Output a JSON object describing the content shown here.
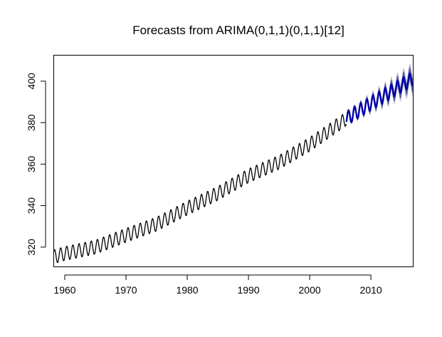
{
  "chart_data": {
    "type": "line",
    "title": "Forecasts from ARIMA(0,1,1)(0,1,1)[12]",
    "xlabel": "",
    "ylabel": "",
    "xlim": [
      1958.2,
      2016.9
    ],
    "ylim": [
      310.5,
      412.5
    ],
    "x_ticks": [
      1960,
      1970,
      1980,
      1990,
      2000,
      2010
    ],
    "y_ticks": [
      320,
      340,
      360,
      380,
      400
    ],
    "grid": false,
    "legend": "none",
    "colors": {
      "observed": "#000000",
      "forecast_mean": "#0000aa",
      "interval_80": "#595a9e",
      "interval_95": "#c5c6d8"
    },
    "seasonal_amplitude_ppm": 3.4,
    "series": [
      {
        "role": "observed",
        "frequency": "monthly",
        "trend_knots": {
          "x": [
            1958.2,
            1960,
            1965,
            1970,
            1975,
            1980,
            1985,
            1990,
            1995,
            2000,
            2005,
            2006.0
          ],
          "y": [
            315.3,
            316.9,
            320.0,
            325.7,
            331.1,
            338.8,
            345.9,
            354.4,
            360.9,
            369.5,
            379.8,
            382.0
          ]
        }
      },
      {
        "role": "forecast",
        "frequency": "monthly",
        "trend_knots": {
          "x": [
            2006.0,
            2010,
            2016.9
          ],
          "y": [
            382.0,
            389.3,
            401.3
          ]
        },
        "interval_80_halfwidth": {
          "x": [
            2006.0,
            2016.9
          ],
          "y": [
            0.4,
            3.3
          ]
        },
        "interval_95_halfwidth": {
          "x": [
            2006.0,
            2016.9
          ],
          "y": [
            0.6,
            5.2
          ]
        }
      }
    ]
  }
}
